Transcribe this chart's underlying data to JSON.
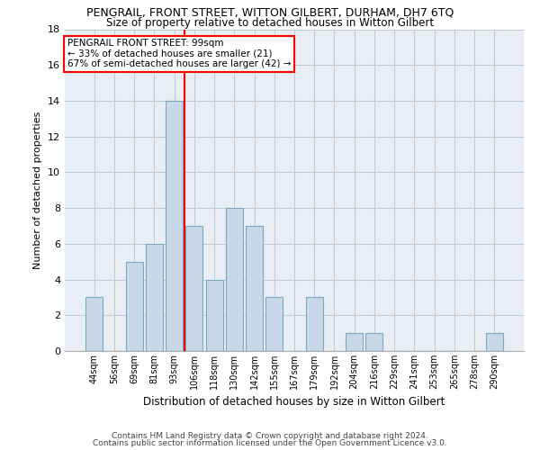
{
  "title1": "PENGRAIL, FRONT STREET, WITTON GILBERT, DURHAM, DH7 6TQ",
  "title2": "Size of property relative to detached houses in Witton Gilbert",
  "xlabel": "Distribution of detached houses by size in Witton Gilbert",
  "ylabel": "Number of detached properties",
  "categories": [
    "44sqm",
    "56sqm",
    "69sqm",
    "81sqm",
    "93sqm",
    "106sqm",
    "118sqm",
    "130sqm",
    "142sqm",
    "155sqm",
    "167sqm",
    "179sqm",
    "192sqm",
    "204sqm",
    "216sqm",
    "229sqm",
    "241sqm",
    "253sqm",
    "265sqm",
    "278sqm",
    "290sqm"
  ],
  "values": [
    3,
    0,
    5,
    6,
    14,
    7,
    4,
    8,
    7,
    3,
    0,
    3,
    0,
    1,
    1,
    0,
    0,
    0,
    0,
    0,
    1
  ],
  "bar_color": "#c8d8e8",
  "bar_edge_color": "#7aaabf",
  "property_line_x": 4.5,
  "annotation_line1": "PENGRAIL FRONT STREET: 99sqm",
  "annotation_line2": "← 33% of detached houses are smaller (21)",
  "annotation_line3": "67% of semi-detached houses are larger (42) →",
  "annotation_box_color": "white",
  "annotation_box_edge_color": "red",
  "vline_color": "red",
  "ylim": [
    0,
    18
  ],
  "yticks": [
    0,
    2,
    4,
    6,
    8,
    10,
    12,
    14,
    16,
    18
  ],
  "footer1": "Contains HM Land Registry data © Crown copyright and database right 2024.",
  "footer2": "Contains public sector information licensed under the Open Government Licence v3.0.",
  "background_color": "#e8eef4",
  "grid_color": "#c0cad4",
  "title1_fontsize": 9,
  "title2_fontsize": 8.5,
  "ylabel_fontsize": 8,
  "xlabel_fontsize": 8.5,
  "annotation_fontsize": 7.5,
  "footer_fontsize": 6.5
}
